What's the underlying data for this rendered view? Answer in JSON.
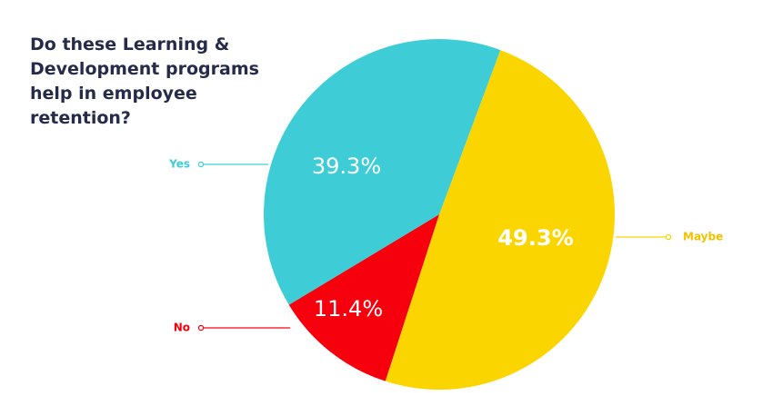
{
  "chart_data": {
    "type": "pie",
    "title": "Do these Learning & Development programs help in employee retention?",
    "slices": [
      {
        "label": "Maybe",
        "value": 49.3,
        "value_label": "49.3%",
        "color": "#fbd500",
        "text_color": "#ffffff"
      },
      {
        "label": "No",
        "value": 11.4,
        "value_label": "11.4%",
        "color": "#f5000c",
        "text_color": "#ffffff"
      },
      {
        "label": "Yes",
        "value": 39.3,
        "value_label": "39.3%",
        "color": "#3ecdd6",
        "text_color": "#ffffff"
      }
    ]
  }
}
